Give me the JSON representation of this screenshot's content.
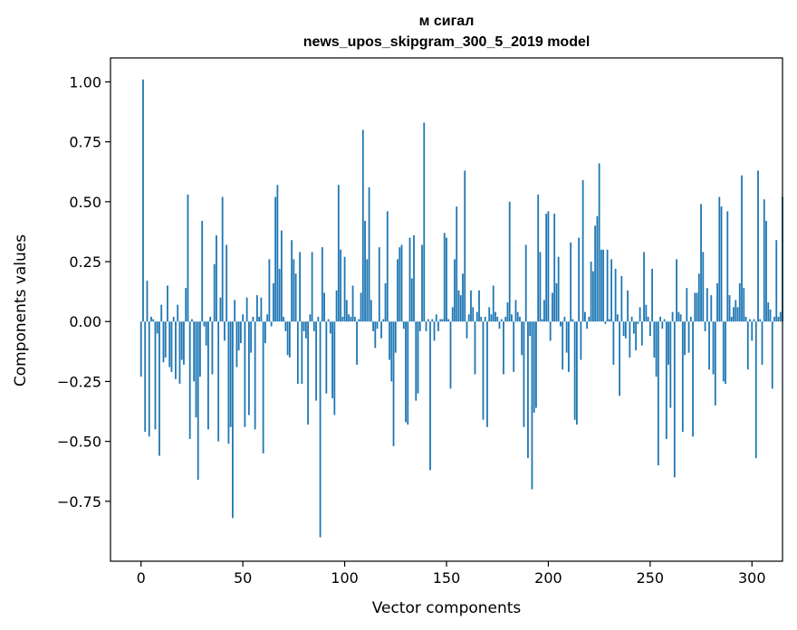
{
  "chart_data": {
    "type": "bar",
    "title_line1": "м сигал",
    "title_line2": "news_upos_skipgram_300_5_2019 model",
    "xlabel": "Vector components",
    "ylabel": "Components values",
    "xlim": [
      -15,
      315
    ],
    "ylim": [
      -1.0,
      1.1
    ],
    "xticks": [
      0,
      50,
      100,
      150,
      200,
      250,
      300
    ],
    "xtick_labels": [
      "0",
      "50",
      "100",
      "150",
      "200",
      "250",
      "300"
    ],
    "yticks": [
      -0.75,
      -0.5,
      -0.25,
      0.0,
      0.25,
      0.5,
      0.75,
      1.0
    ],
    "ytick_labels": [
      "−0.75",
      "−0.50",
      "−0.25",
      "0.00",
      "0.25",
      "0.50",
      "0.75",
      "1.00"
    ],
    "bar_color": "#1f77b4",
    "grid": false,
    "values": [
      -0.23,
      1.01,
      -0.46,
      0.17,
      -0.48,
      0.02,
      0.01,
      -0.45,
      -0.05,
      -0.56,
      0.07,
      -0.17,
      -0.15,
      0.15,
      -0.19,
      -0.21,
      0.02,
      -0.24,
      0.07,
      -0.26,
      -0.16,
      -0.18,
      0.14,
      0.53,
      -0.49,
      0.01,
      -0.25,
      -0.4,
      -0.66,
      -0.23,
      0.42,
      -0.02,
      -0.1,
      -0.45,
      0.02,
      -0.22,
      0.24,
      0.36,
      -0.5,
      0.1,
      0.52,
      -0.08,
      0.32,
      -0.51,
      -0.44,
      -0.82,
      0.09,
      -0.19,
      -0.12,
      -0.09,
      0.03,
      -0.44,
      0.1,
      -0.39,
      -0.13,
      0.02,
      -0.45,
      0.11,
      0.02,
      0.1,
      -0.55,
      -0.09,
      0.03,
      0.26,
      -0.02,
      0.16,
      0.52,
      0.57,
      0.22,
      0.38,
      0.02,
      -0.04,
      -0.14,
      -0.15,
      0.34,
      0.26,
      0.2,
      -0.26,
      0.29,
      -0.26,
      -0.04,
      -0.07,
      -0.43,
      0.03,
      0.29,
      -0.04,
      -0.33,
      0.02,
      -0.9,
      0.31,
      0.12,
      -0.3,
      0.01,
      -0.05,
      -0.32,
      -0.39,
      0.13,
      0.57,
      0.3,
      0.02,
      0.27,
      0.09,
      0.03,
      0.02,
      0.15,
      0.02,
      -0.18,
      0.01,
      0.12,
      0.8,
      0.42,
      0.26,
      0.56,
      0.09,
      -0.04,
      -0.11,
      -0.03,
      0.31,
      -0.07,
      0.01,
      0.16,
      0.46,
      -0.16,
      -0.25,
      -0.52,
      -0.13,
      0.26,
      0.31,
      0.32,
      -0.03,
      -0.42,
      -0.43,
      0.35,
      0.18,
      0.36,
      -0.33,
      -0.3,
      -0.04,
      0.32,
      0.83,
      -0.04,
      0.01,
      -0.62,
      0.01,
      -0.08,
      0.03,
      -0.04,
      0.01,
      0.01,
      0.37,
      0.35,
      0.01,
      -0.28,
      0.06,
      0.26,
      0.48,
      0.13,
      0.11,
      0.2,
      0.63,
      -0.07,
      0.03,
      0.13,
      0.06,
      -0.22,
      0.04,
      0.13,
      0.02,
      -0.41,
      0.02,
      -0.44,
      0.06,
      0.03,
      0.15,
      0.04,
      0.02,
      -0.03,
      0.01,
      -0.22,
      0.02,
      0.08,
      0.5,
      0.03,
      -0.21,
      0.09,
      0.04,
      0.02,
      -0.14,
      -0.44,
      0.32,
      -0.57,
      -0.06,
      -0.7,
      -0.38,
      -0.36,
      0.53,
      0.29,
      0.01,
      0.09,
      0.45,
      0.46,
      -0.08,
      0.12,
      0.45,
      0.16,
      0.27,
      -0.02,
      -0.2,
      0.02,
      -0.13,
      -0.21,
      0.33,
      0.01,
      -0.41,
      -0.43,
      0.35,
      -0.16,
      0.59,
      0.04,
      -0.03,
      0.02,
      0.25,
      0.21,
      0.4,
      0.44,
      0.66,
      0.3,
      0.3,
      -0.01,
      0.3,
      0.01,
      0.26,
      -0.18,
      0.22,
      0.03,
      -0.31,
      0.19,
      -0.06,
      -0.07,
      0.13,
      -0.15,
      0.02,
      -0.05,
      -0.12,
      -0.01,
      0.06,
      -0.1,
      0.29,
      0.07,
      0.02,
      -0.06,
      0.22,
      -0.15,
      -0.23,
      -0.6,
      0.02,
      -0.03,
      0.01,
      -0.49,
      -0.18,
      -0.36,
      0.04,
      -0.65,
      0.26,
      0.04,
      0.03,
      -0.46,
      -0.14,
      0.14,
      -0.13,
      0.02,
      -0.48,
      0.12,
      0.12,
      0.2,
      0.49,
      0.29,
      -0.04,
      0.14,
      -0.2,
      0.11,
      -0.22,
      -0.35,
      0.16,
      0.52,
      0.48,
      -0.25,
      -0.26,
      0.46,
      0.11,
      0.02,
      0.06,
      0.09,
      0.06,
      0.16,
      0.61,
      0.14,
      0.02,
      -0.2,
      0.01,
      -0.08,
      0.01,
      -0.57,
      0.63,
      0.01,
      -0.18,
      0.51,
      0.42,
      0.08,
      0.05,
      -0.28,
      0.02,
      0.34,
      0.02,
      0.04,
      0.52
    ]
  }
}
